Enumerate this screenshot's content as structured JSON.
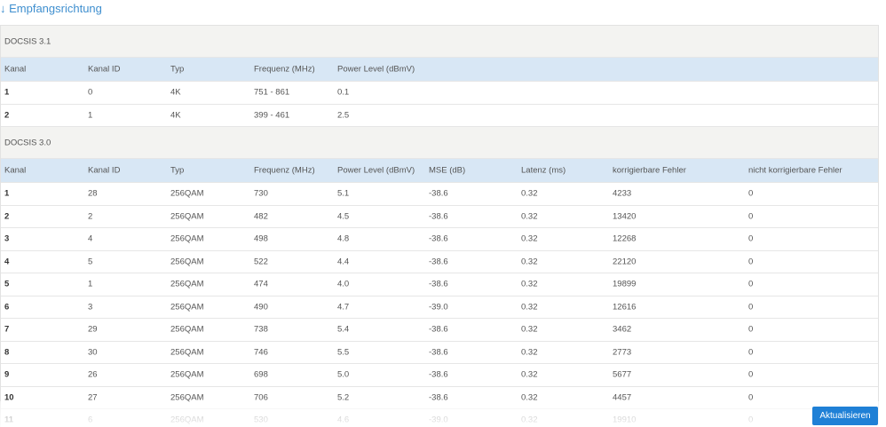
{
  "header": {
    "title": "↓ Empfangsrichtung"
  },
  "sections": [
    {
      "label": "DOCSIS 3.1",
      "columns": [
        "Kanal",
        "Kanal ID",
        "Typ",
        "Frequenz (MHz)",
        "Power Level (dBmV)"
      ],
      "rows": [
        [
          "1",
          "0",
          "4K",
          "751 - 861",
          "0.1"
        ],
        [
          "2",
          "1",
          "4K",
          "399 - 461",
          "2.5"
        ]
      ]
    },
    {
      "label": "DOCSIS 3.0",
      "columns": [
        "Kanal",
        "Kanal ID",
        "Typ",
        "Frequenz (MHz)",
        "Power Level (dBmV)",
        "MSE (dB)",
        "Latenz (ms)",
        "korrigierbare Fehler",
        "nicht korrigierbare Fehler"
      ],
      "rows": [
        [
          "1",
          "28",
          "256QAM",
          "730",
          "5.1",
          "-38.6",
          "0.32",
          "4233",
          "0"
        ],
        [
          "2",
          "2",
          "256QAM",
          "482",
          "4.5",
          "-38.6",
          "0.32",
          "13420",
          "0"
        ],
        [
          "3",
          "4",
          "256QAM",
          "498",
          "4.8",
          "-38.6",
          "0.32",
          "12268",
          "0"
        ],
        [
          "4",
          "5",
          "256QAM",
          "522",
          "4.4",
          "-38.6",
          "0.32",
          "22120",
          "0"
        ],
        [
          "5",
          "1",
          "256QAM",
          "474",
          "4.0",
          "-38.6",
          "0.32",
          "19899",
          "0"
        ],
        [
          "6",
          "3",
          "256QAM",
          "490",
          "4.7",
          "-39.0",
          "0.32",
          "12616",
          "0"
        ],
        [
          "7",
          "29",
          "256QAM",
          "738",
          "5.4",
          "-38.6",
          "0.32",
          "3462",
          "0"
        ],
        [
          "8",
          "30",
          "256QAM",
          "746",
          "5.5",
          "-38.6",
          "0.32",
          "2773",
          "0"
        ],
        [
          "9",
          "26",
          "256QAM",
          "698",
          "5.0",
          "-38.6",
          "0.32",
          "5677",
          "0"
        ],
        [
          "10",
          "27",
          "256QAM",
          "706",
          "5.2",
          "-38.6",
          "0.32",
          "4457",
          "0"
        ],
        [
          "11",
          "6",
          "256QAM",
          "530",
          "4.6",
          "-39.0",
          "0.32",
          "19910",
          "0"
        ]
      ]
    }
  ],
  "button": {
    "label": "Aktualisieren"
  }
}
